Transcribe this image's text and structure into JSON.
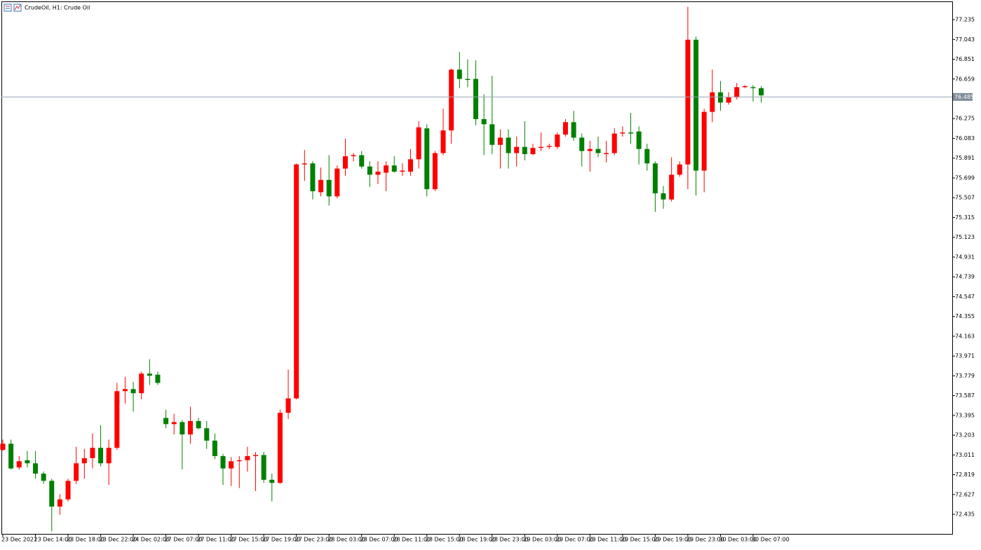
{
  "chart_data": {
    "type": "candlestick",
    "title": "CrudeOil, H1:  Crude Oil",
    "categories": [
      "23 Dec 2021",
      null,
      null,
      null,
      "23 Dec 14:00",
      null,
      null,
      null,
      "23 Dec 18:00",
      null,
      null,
      null,
      "23 Dec 22:00",
      null,
      null,
      null,
      "24 Dec 02:00",
      null,
      null,
      null,
      "27 Dec 07:00",
      null,
      null,
      null,
      "27 Dec 11:00",
      null,
      null,
      null,
      "27 Dec 15:00",
      null,
      null,
      null,
      "27 Dec 19:00",
      null,
      null,
      null,
      "27 Dec 23:00",
      null,
      null,
      null,
      "28 Dec 03:00",
      null,
      null,
      null,
      "28 Dec 07:00",
      null,
      null,
      null,
      "28 Dec 11:00",
      null,
      null,
      null,
      "28 Dec 15:00",
      null,
      null,
      null,
      "28 Dec 19:00",
      null,
      null,
      null,
      "28 Dec 23:00",
      null,
      null,
      null,
      "29 Dec 03:00",
      null,
      null,
      null,
      "29 Dec 07:00",
      null,
      null,
      null,
      "29 Dec 11:00",
      null,
      null,
      null,
      "29 Dec 15:00",
      null,
      null,
      null,
      "29 Dec 19:00",
      null,
      null,
      null,
      "29 Dec 23:00",
      null,
      null,
      null,
      "30 Dec 03:00",
      null,
      null,
      null,
      "30 Dec 07:00",
      null
    ],
    "open": [
      73.06,
      73.12,
      72.89,
      72.96,
      72.93,
      72.83,
      72.76,
      72.51,
      72.58,
      72.76,
      72.93,
      72.98,
      73.08,
      72.93,
      73.08,
      73.63,
      73.65,
      73.61,
      73.8,
      73.79,
      73.37,
      73.31,
      73.33,
      73.21,
      73.34,
      73.27,
      73.15,
      73.0,
      72.88,
      72.95,
      72.96,
      73.0,
      73.01,
      72.77,
      72.74,
      73.42,
      73.56,
      75.83,
      75.84,
      75.56,
      75.68,
      75.52,
      75.79,
      75.91,
      75.92,
      75.81,
      75.73,
      75.75,
      75.82,
      75.76,
      75.76,
      75.88,
      76.18,
      75.59,
      75.94,
      76.16,
      76.75,
      76.66,
      76.66,
      76.27,
      76.22,
      76.02,
      76.09,
      75.94,
      76.0,
      75.93,
      75.99,
      76.0,
      76.0,
      76.12,
      76.24,
      76.09,
      75.96,
      75.98,
      75.93,
      75.94,
      76.13,
      76.14,
      76.15,
      75.98,
      75.84,
      75.55,
      75.49,
      75.73,
      75.83,
      77.04,
      75.77,
      76.34,
      76.53,
      76.43,
      76.48,
      76.58,
      76.58,
      76.57
    ],
    "high": [
      73.16,
      73.16,
      73.0,
      73.05,
      73.05,
      72.85,
      72.78,
      72.63,
      72.78,
      73.09,
      73.07,
      73.22,
      73.3,
      73.16,
      73.71,
      73.77,
      73.72,
      73.82,
      73.94,
      73.82,
      73.45,
      73.41,
      73.35,
      73.48,
      73.37,
      73.34,
      73.22,
      73.02,
      72.99,
      73.0,
      73.09,
      73.04,
      73.04,
      72.83,
      73.45,
      73.84,
      75.84,
      75.97,
      75.86,
      75.8,
      75.92,
      75.82,
      76.08,
      75.94,
      75.96,
      75.86,
      75.86,
      75.86,
      75.91,
      75.84,
      75.98,
      76.25,
      76.22,
      75.96,
      76.37,
      76.76,
      76.92,
      76.85,
      76.84,
      76.51,
      76.69,
      76.17,
      76.17,
      76.1,
      76.25,
      76.03,
      76.14,
      76.03,
      76.14,
      76.27,
      76.35,
      76.13,
      76.06,
      76.1,
      76.06,
      76.18,
      76.2,
      76.33,
      76.2,
      76.03,
      75.86,
      75.62,
      75.9,
      75.86,
      77.36,
      77.07,
      76.37,
      76.75,
      76.64,
      76.53,
      76.62,
      76.6,
      76.6,
      76.59
    ],
    "low": [
      73.05,
      72.87,
      72.87,
      72.89,
      72.78,
      72.73,
      72.27,
      72.43,
      72.56,
      72.73,
      72.78,
      72.88,
      72.9,
      72.72,
      73.06,
      73.51,
      73.43,
      73.55,
      73.69,
      73.69,
      73.27,
      73.21,
      72.87,
      73.12,
      73.26,
      73.07,
      72.97,
      72.72,
      72.71,
      72.69,
      72.85,
      72.66,
      72.74,
      72.56,
      72.73,
      73.36,
      73.55,
      75.67,
      75.49,
      75.52,
      75.43,
      75.5,
      75.72,
      75.86,
      75.79,
      75.61,
      75.64,
      75.57,
      75.75,
      75.72,
      75.72,
      75.79,
      75.52,
      75.57,
      75.92,
      76.03,
      76.57,
      76.58,
      76.21,
      75.92,
      75.93,
      75.79,
      75.79,
      75.81,
      75.87,
      75.92,
      75.96,
      75.98,
      75.98,
      76.1,
      76.06,
      75.81,
      75.76,
      75.9,
      75.85,
      75.92,
      76.1,
      76.03,
      75.83,
      75.77,
      75.37,
      75.4,
      75.47,
      75.71,
      75.59,
      75.53,
      75.56,
      76.24,
      76.35,
      76.41,
      76.46,
      76.57,
      76.44,
      76.43
    ],
    "close": [
      73.12,
      72.88,
      72.95,
      72.93,
      72.83,
      72.76,
      72.51,
      72.58,
      72.76,
      72.93,
      72.98,
      73.08,
      72.93,
      73.08,
      73.63,
      73.65,
      73.61,
      73.8,
      73.78,
      73.71,
      73.31,
      73.33,
      73.21,
      73.34,
      73.27,
      73.15,
      73.0,
      72.88,
      72.95,
      72.96,
      73.0,
      73.01,
      72.77,
      72.74,
      73.42,
      73.56,
      75.83,
      75.84,
      75.57,
      75.68,
      75.52,
      75.79,
      75.91,
      75.92,
      75.81,
      75.73,
      75.76,
      75.82,
      75.76,
      75.77,
      75.88,
      76.19,
      75.59,
      75.94,
      76.16,
      76.75,
      76.66,
      76.65,
      76.27,
      76.22,
      76.02,
      76.09,
      75.94,
      76.0,
      75.93,
      75.99,
      76.0,
      76.01,
      76.12,
      76.24,
      76.09,
      75.96,
      75.98,
      75.94,
      75.94,
      76.13,
      76.14,
      76.13,
      75.98,
      75.84,
      75.55,
      75.49,
      75.73,
      75.83,
      77.04,
      75.77,
      76.34,
      76.53,
      76.43,
      76.48,
      76.58,
      76.59,
      76.57,
      76.5
    ],
    "up_color": "#ff0000",
    "down_color": "#008000",
    "current_price": 76.485,
    "ylim": [
      72.245,
      77.412
    ],
    "yticks": [
      77.235,
      77.043,
      76.851,
      76.659,
      76.275,
      76.083,
      75.891,
      75.699,
      75.507,
      75.315,
      75.123,
      74.931,
      74.739,
      74.547,
      74.355,
      74.163,
      73.971,
      73.779,
      73.587,
      73.395,
      73.203,
      73.011,
      72.819,
      72.627,
      72.435
    ],
    "grid": false
  }
}
